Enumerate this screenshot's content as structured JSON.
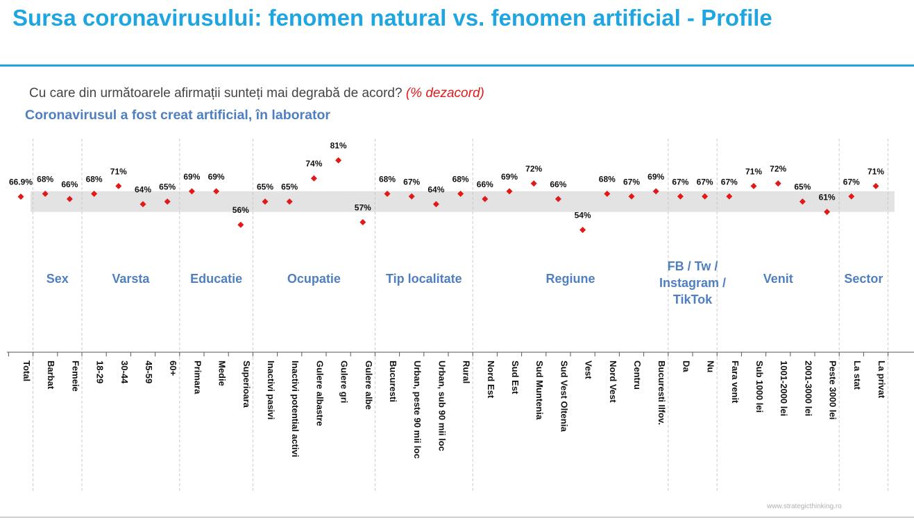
{
  "page": {
    "title": "Sursa coronavirusului: fenomen natural vs. fenomen artificial - Profile",
    "question": "Cu care din următoarele afirmații sunteți mai degrabă de acord?",
    "question_note": "(% dezacord)",
    "subtitle": "Coronavirusul a fost creat artificial, în laborator",
    "source": "www.strategicthinking.ro"
  },
  "colors": {
    "accent": "#1fa6e0",
    "group_label": "#4f7fbf",
    "marker": "#e01a1a",
    "band": "#e3e3e3"
  },
  "chart_data": {
    "type": "scatter",
    "marker": "diamond",
    "reference_band": [
      61,
      69
    ],
    "categories": [
      "Total",
      "Barbat",
      "Femeie",
      "18-29",
      "30-44",
      "45-59",
      "60+",
      "Primara",
      "Medie",
      "Superioara",
      "Inactivi pasivi",
      "Inactivi potential activi",
      "Gulere albastre",
      "Gulere gri",
      "Gulere albe",
      "Bucuresti",
      "Urban, peste 90 mii loc",
      "Urban, sub 90 mii loc",
      "Rural",
      "Nord Est",
      "Sud Est",
      "Sud Muntenia",
      "Sud Vest Oltenia",
      "Vest",
      "Nord Vest",
      "Centru",
      "Bucuresti Ilfov.",
      "Da",
      "Nu",
      "Fara venit",
      "Sub 1000 lei",
      "1001-2000 lei",
      "2001-3000 lei",
      "Peste 3000 lei",
      "La stat",
      "La privat"
    ],
    "values": [
      66.9,
      68,
      66,
      68,
      71,
      64,
      65,
      69,
      69,
      56,
      65,
      65,
      74,
      81,
      57,
      68,
      67,
      64,
      68,
      66,
      69,
      72,
      66,
      54,
      68,
      67,
      69,
      67,
      67,
      67,
      71,
      72,
      65,
      61,
      67,
      71
    ],
    "labels": [
      "66.9%",
      "68%",
      "66%",
      "68%",
      "71%",
      "64%",
      "65%",
      "69%",
      "69%",
      "56%",
      "65%",
      "65%",
      "74%",
      "81%",
      "57%",
      "68%",
      "67%",
      "64%",
      "68%",
      "66%",
      "69%",
      "72%",
      "66%",
      "54%",
      "68%",
      "67%",
      "69%",
      "67%",
      "67%",
      "67%",
      "71%",
      "72%",
      "65%",
      "61%",
      "67%",
      "71%"
    ],
    "highlight": [
      false,
      false,
      false,
      false,
      false,
      false,
      false,
      false,
      false,
      true,
      false,
      false,
      true,
      true,
      true,
      false,
      false,
      false,
      false,
      false,
      false,
      false,
      false,
      true,
      false,
      false,
      false,
      false,
      false,
      false,
      false,
      false,
      false,
      true,
      false,
      false
    ],
    "groups": [
      {
        "name": "Sex",
        "start": 1,
        "end": 2
      },
      {
        "name": "Varsta",
        "start": 3,
        "end": 6
      },
      {
        "name": "Educatie",
        "start": 7,
        "end": 9
      },
      {
        "name": "Ocupatie",
        "start": 10,
        "end": 14
      },
      {
        "name": "Tip localitate",
        "start": 15,
        "end": 18
      },
      {
        "name": "Regiune",
        "start": 19,
        "end": 26
      },
      {
        "name": "FB / Tw / Instagram / TikTok",
        "start": 27,
        "end": 28
      },
      {
        "name": "Venit",
        "start": 29,
        "end": 33
      },
      {
        "name": "Sector",
        "start": 34,
        "end": 35
      }
    ]
  }
}
